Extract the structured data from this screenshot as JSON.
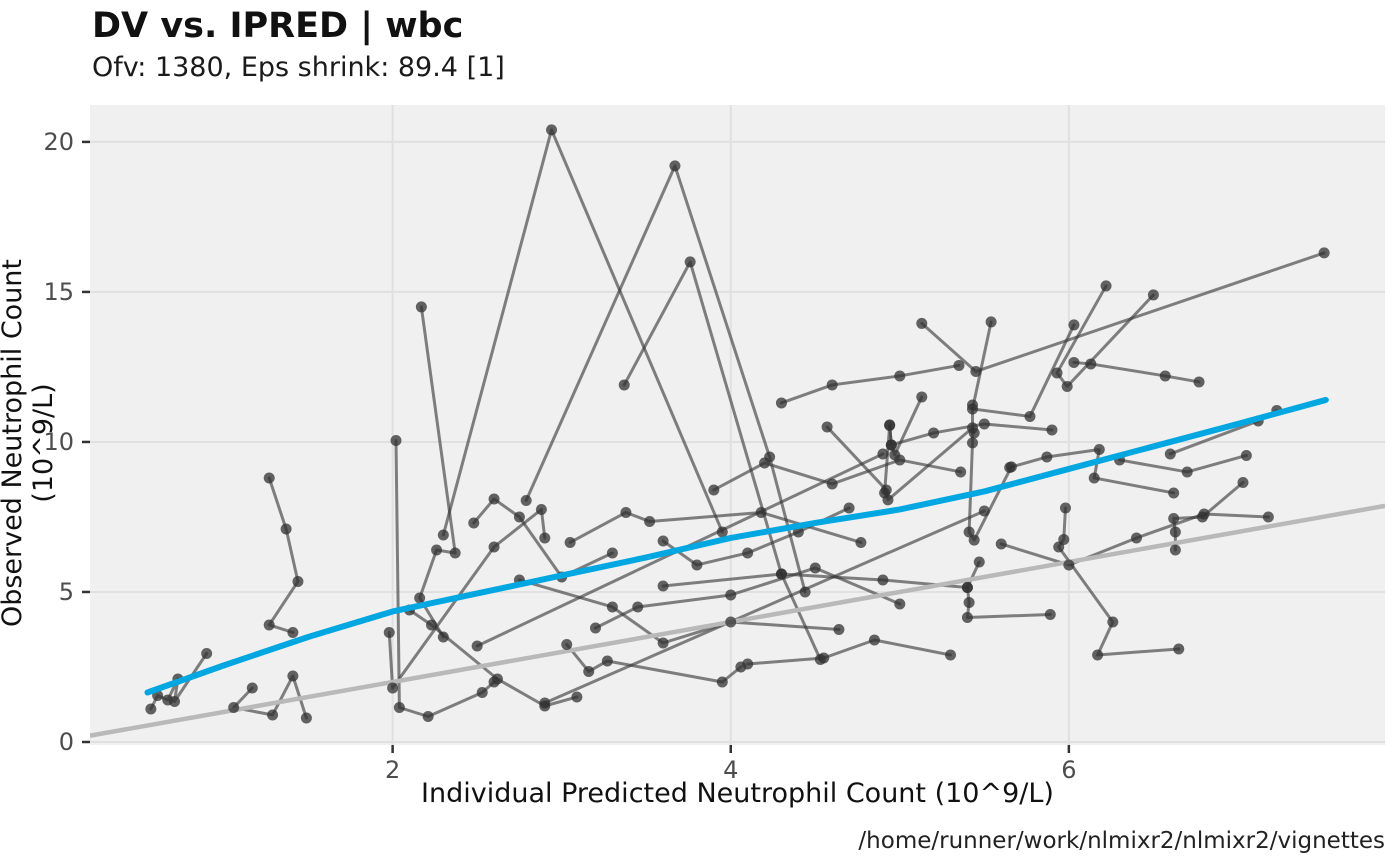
{
  "header": {
    "title": "DV vs. IPRED | wbc",
    "subtitle": "Ofv: 1380, Eps shrink: 89.4 [1]"
  },
  "caption": "/home/runner/work/nlmixr2/nlmixr2/vignettes",
  "chart_data": {
    "type": "scatter",
    "title": "DV vs. IPRED | wbc",
    "subtitle": "Ofv: 1380, Eps shrink: 89.4 [1]",
    "xlabel": "Individual Predicted Neutrophil Count (10^9/L)",
    "ylabel": "Observed Neutrophil Count (10^9/L)",
    "xlim": [
      0.21,
      7.87
    ],
    "ylim": [
      -0.1,
      21.23
    ],
    "xticks": [
      2,
      4,
      6
    ],
    "yticks": [
      0,
      5,
      10,
      15,
      20
    ],
    "grid": "major-only",
    "legend": "none",
    "colors": {
      "panel_bg": "#f0f0f0",
      "grid": "#e0e0e0",
      "tick": "#333333",
      "tick_label": "#4d4d4d",
      "subject_line": "rgba(55,55,55,0.62)",
      "subject_point": "rgba(50,50,50,0.75)",
      "identity_line": "#b9b9b9",
      "smooth_line": "#00a7e1"
    },
    "identity_line": [
      [
        0.21,
        0.21
      ],
      [
        7.87,
        7.87
      ]
    ],
    "smooth_line": [
      [
        0.55,
        1.65
      ],
      [
        1.0,
        2.55
      ],
      [
        1.5,
        3.5
      ],
      [
        2.0,
        4.35
      ],
      [
        2.5,
        4.95
      ],
      [
        3.0,
        5.55
      ],
      [
        3.5,
        6.15
      ],
      [
        4.0,
        6.8
      ],
      [
        4.5,
        7.3
      ],
      [
        5.0,
        7.75
      ],
      [
        5.5,
        8.35
      ],
      [
        6.0,
        9.1
      ],
      [
        6.5,
        9.85
      ],
      [
        7.0,
        10.6
      ],
      [
        7.52,
        11.4
      ]
    ],
    "subjects": [
      [
        [
          0.57,
          1.1
        ],
        [
          0.61,
          1.55
        ],
        [
          0.67,
          1.4
        ],
        [
          0.73,
          2.1
        ],
        [
          0.71,
          1.35
        ],
        [
          0.9,
          2.95
        ]
      ],
      [
        [
          1.27,
          8.8
        ],
        [
          1.37,
          7.1
        ],
        [
          1.44,
          5.35
        ],
        [
          1.27,
          3.9
        ],
        [
          1.41,
          3.65
        ]
      ],
      [
        [
          1.17,
          1.8
        ],
        [
          1.06,
          1.15
        ],
        [
          1.29,
          0.9
        ],
        [
          1.41,
          2.2
        ],
        [
          1.49,
          0.8
        ]
      ],
      [
        [
          2.02,
          10.05
        ],
        [
          2.04,
          1.15
        ],
        [
          2.21,
          0.85
        ],
        [
          2.53,
          1.65
        ],
        [
          2.6,
          2.0
        ]
      ],
      [
        [
          2.17,
          14.5
        ],
        [
          2.37,
          6.3
        ],
        [
          2.26,
          6.4
        ],
        [
          2.16,
          4.8
        ],
        [
          2.3,
          3.5
        ]
      ],
      [
        [
          2.1,
          4.4
        ],
        [
          2.23,
          3.9
        ],
        [
          2.62,
          2.1
        ],
        [
          2.9,
          1.2
        ],
        [
          3.09,
          1.5
        ]
      ],
      [
        [
          2.3,
          6.9
        ],
        [
          2.94,
          20.4
        ],
        [
          3.95,
          7.0
        ]
      ],
      [
        [
          2.79,
          8.05
        ],
        [
          3.67,
          19.2
        ],
        [
          4.23,
          9.5
        ],
        [
          4.44,
          5.0
        ]
      ],
      [
        [
          3.37,
          11.9
        ],
        [
          3.76,
          16.0
        ],
        [
          4.3,
          5.6
        ],
        [
          4.53,
          2.75
        ]
      ],
      [
        [
          1.98,
          3.65
        ],
        [
          2.0,
          1.8
        ],
        [
          2.6,
          6.5
        ],
        [
          2.88,
          7.75
        ],
        [
          2.9,
          6.8
        ]
      ],
      [
        [
          3.03,
          3.25
        ],
        [
          3.16,
          2.35
        ],
        [
          3.27,
          2.7
        ],
        [
          3.95,
          2.0
        ],
        [
          4.06,
          2.5
        ]
      ],
      [
        [
          3.05,
          6.65
        ],
        [
          3.38,
          7.65
        ],
        [
          3.52,
          7.35
        ],
        [
          4.18,
          7.65
        ],
        [
          4.77,
          6.65
        ]
      ],
      [
        [
          2.75,
          5.4
        ],
        [
          3.3,
          4.5
        ],
        [
          3.6,
          3.3
        ],
        [
          4.0,
          4.0
        ],
        [
          4.64,
          3.75
        ]
      ],
      [
        [
          3.6,
          5.2
        ],
        [
          4.3,
          5.6
        ],
        [
          4.9,
          5.4
        ],
        [
          5.4,
          5.15
        ]
      ],
      [
        [
          4.91,
          8.3
        ],
        [
          4.94,
          10.55
        ],
        [
          4.95,
          9.9
        ],
        [
          4.97,
          9.57
        ],
        [
          5.13,
          11.5
        ]
      ],
      [
        [
          5.13,
          13.95
        ],
        [
          5.45,
          12.35
        ],
        [
          7.51,
          16.3
        ]
      ],
      [
        [
          5.54,
          14.0
        ],
        [
          5.43,
          11.1
        ],
        [
          5.77,
          10.85
        ],
        [
          6.03,
          13.9
        ]
      ],
      [
        [
          6.22,
          15.2
        ],
        [
          5.93,
          12.3
        ],
        [
          5.99,
          11.85
        ],
        [
          6.5,
          14.9
        ]
      ],
      [
        [
          6.03,
          12.65
        ],
        [
          6.13,
          12.6
        ],
        [
          6.57,
          12.2
        ],
        [
          6.77,
          12.0
        ]
      ],
      [
        [
          5.65,
          9.15
        ],
        [
          5.87,
          9.5
        ],
        [
          6.18,
          9.75
        ],
        [
          6.15,
          8.8
        ],
        [
          6.62,
          8.3
        ]
      ],
      [
        [
          5.47,
          6.0
        ],
        [
          5.4,
          5.15
        ],
        [
          5.41,
          4.65
        ],
        [
          5.4,
          4.15
        ],
        [
          5.89,
          4.25
        ]
      ],
      [
        [
          5.98,
          7.8
        ],
        [
          5.97,
          6.75
        ],
        [
          5.94,
          6.5
        ],
        [
          6.26,
          4.0
        ],
        [
          6.17,
          2.9
        ],
        [
          6.65,
          3.1
        ]
      ],
      [
        [
          7.03,
          8.65
        ],
        [
          6.79,
          7.5
        ],
        [
          6.62,
          7.45
        ],
        [
          6.63,
          7.0
        ],
        [
          6.63,
          6.4
        ]
      ],
      [
        [
          6.6,
          9.6
        ],
        [
          7.12,
          10.7
        ],
        [
          7.23,
          11.05
        ]
      ],
      [
        [
          4.57,
          10.5
        ],
        [
          4.92,
          8.4
        ],
        [
          4.93,
          8.07
        ],
        [
          5.43,
          10.47
        ],
        [
          5.44,
          10.3
        ]
      ],
      [
        [
          5.43,
          11.23
        ],
        [
          5.43,
          9.97
        ],
        [
          5.41,
          7.0
        ],
        [
          5.44,
          6.73
        ],
        [
          5.66,
          9.17
        ]
      ],
      [
        [
          3.9,
          8.4
        ],
        [
          4.2,
          9.3
        ],
        [
          4.6,
          8.6
        ],
        [
          5.0,
          9.4
        ],
        [
          5.36,
          9.0
        ]
      ],
      [
        [
          2.48,
          7.3
        ],
        [
          2.6,
          8.1
        ],
        [
          2.75,
          7.5
        ],
        [
          3.0,
          5.5
        ],
        [
          3.3,
          6.3
        ]
      ],
      [
        [
          3.2,
          3.8
        ],
        [
          3.45,
          4.5
        ],
        [
          4.0,
          4.9
        ],
        [
          4.5,
          5.8
        ],
        [
          5.0,
          4.6
        ]
      ],
      [
        [
          3.6,
          6.7
        ],
        [
          3.8,
          5.9
        ],
        [
          4.1,
          6.3
        ],
        [
          4.4,
          7.0
        ],
        [
          4.7,
          7.8
        ]
      ],
      [
        [
          2.5,
          3.2
        ],
        [
          4.9,
          9.6
        ]
      ],
      [
        [
          2.9,
          1.3
        ],
        [
          5.5,
          7.7
        ]
      ],
      [
        [
          4.3,
          11.3
        ],
        [
          4.6,
          11.9
        ],
        [
          5.0,
          12.2
        ],
        [
          5.35,
          12.55
        ]
      ],
      [
        [
          5.6,
          6.6
        ],
        [
          6.0,
          5.9
        ],
        [
          6.4,
          6.8
        ],
        [
          6.8,
          7.6
        ],
        [
          7.18,
          7.5
        ]
      ],
      [
        [
          4.1,
          2.6
        ],
        [
          4.55,
          2.8
        ],
        [
          4.85,
          3.4
        ],
        [
          5.3,
          2.9
        ]
      ],
      [
        [
          6.3,
          9.4
        ],
        [
          6.7,
          9.0
        ],
        [
          7.05,
          9.55
        ]
      ],
      [
        [
          4.94,
          10.57
        ],
        [
          4.95,
          9.9
        ],
        [
          5.2,
          10.3
        ],
        [
          5.5,
          10.6
        ],
        [
          5.9,
          10.4
        ]
      ]
    ]
  }
}
